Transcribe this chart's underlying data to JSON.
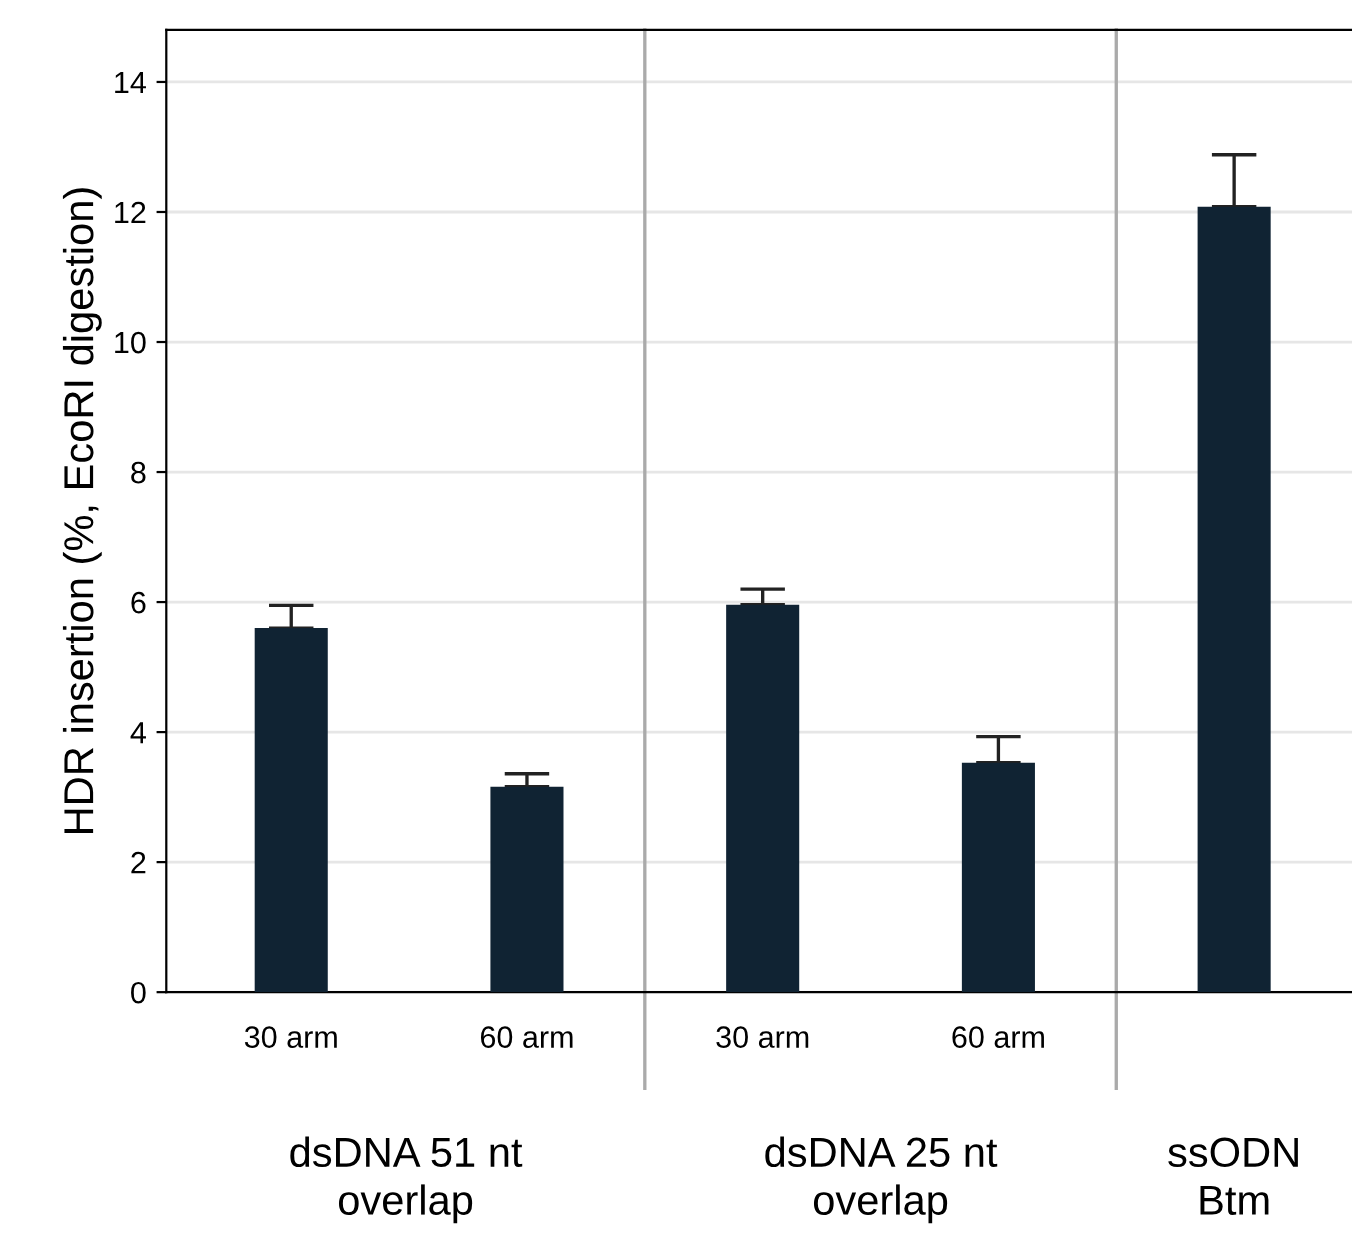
{
  "chart_data": {
    "type": "bar",
    "ylabel": "HDR insertion (%, EcoRI digestion)",
    "categories": [
      "30 arm",
      "60 arm",
      "30 arm",
      "60 arm",
      null
    ],
    "values": [
      5.6,
      3.16,
      5.96,
      3.53,
      12.08
    ],
    "errors": [
      0.35,
      0.2,
      0.24,
      0.4,
      0.8
    ],
    "color": "#102333",
    "ylim": [
      0,
      14.8
    ],
    "yticks": [
      0,
      2,
      4,
      6,
      8,
      10,
      12,
      14
    ],
    "grid": "y",
    "annotations": [
      "dsDNA 51 nt\noverlap",
      "dsDNA 25 nt\noverlap",
      "ssODN\nBtm"
    ]
  }
}
